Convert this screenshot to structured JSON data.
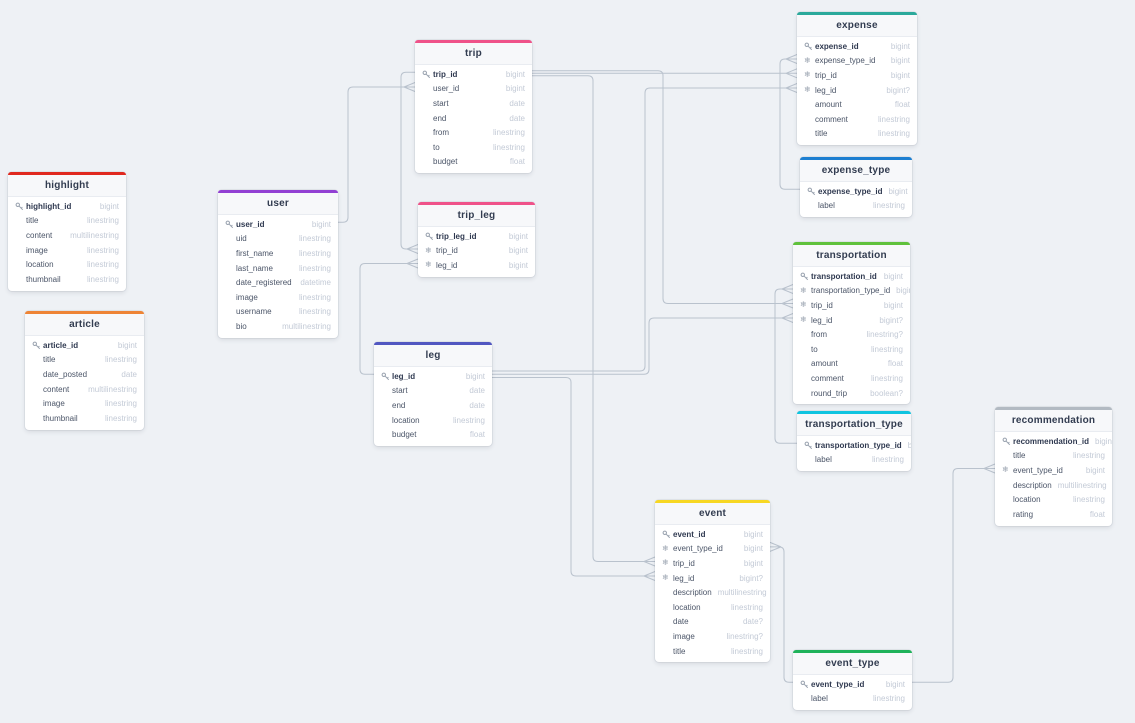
{
  "canvas": {
    "background_color": "#eef1f5",
    "connector_color": "#b9c2cd"
  },
  "tables": [
    {
      "name": "highlight",
      "color": "#e0281e",
      "fields": [
        {
          "name": "highlight_id",
          "type": "bigint",
          "key": "pk"
        },
        {
          "name": "title",
          "type": "linestring",
          "key": null
        },
        {
          "name": "content",
          "type": "multilinestring",
          "key": null
        },
        {
          "name": "image",
          "type": "linestring",
          "key": null
        },
        {
          "name": "location",
          "type": "linestring",
          "key": null
        },
        {
          "name": "thumbnail",
          "type": "linestring",
          "key": null
        }
      ]
    },
    {
      "name": "article",
      "color": "#ee8435",
      "fields": [
        {
          "name": "article_id",
          "type": "bigint",
          "key": "pk"
        },
        {
          "name": "title",
          "type": "linestring",
          "key": null
        },
        {
          "name": "date_posted",
          "type": "date",
          "key": null
        },
        {
          "name": "content",
          "type": "multilinestring",
          "key": null
        },
        {
          "name": "image",
          "type": "linestring",
          "key": null
        },
        {
          "name": "thumbnail",
          "type": "linestring",
          "key": null
        }
      ]
    },
    {
      "name": "user",
      "color": "#9240d3",
      "fields": [
        {
          "name": "user_id",
          "type": "bigint",
          "key": "pk"
        },
        {
          "name": "uid",
          "type": "linestring",
          "key": null
        },
        {
          "name": "first_name",
          "type": "linestring",
          "key": null
        },
        {
          "name": "last_name",
          "type": "linestring",
          "key": null
        },
        {
          "name": "date_registered",
          "type": "datetime",
          "key": null
        },
        {
          "name": "image",
          "type": "linestring",
          "key": null
        },
        {
          "name": "username",
          "type": "linestring",
          "key": null
        },
        {
          "name": "bio",
          "type": "multilinestring",
          "key": null
        }
      ]
    },
    {
      "name": "trip",
      "color": "#ef5289",
      "fields": [
        {
          "name": "trip_id",
          "type": "bigint",
          "key": "pk"
        },
        {
          "name": "user_id",
          "type": "bigint",
          "key": null
        },
        {
          "name": "start",
          "type": "date",
          "key": null
        },
        {
          "name": "end",
          "type": "date",
          "key": null
        },
        {
          "name": "from",
          "type": "linestring",
          "key": null
        },
        {
          "name": "to",
          "type": "linestring",
          "key": null
        },
        {
          "name": "budget",
          "type": "float",
          "key": null
        }
      ]
    },
    {
      "name": "trip_leg",
      "color": "#ef5289",
      "fields": [
        {
          "name": "trip_leg_id",
          "type": "bigint",
          "key": "pk"
        },
        {
          "name": "trip_id",
          "type": "bigint",
          "key": "fk"
        },
        {
          "name": "leg_id",
          "type": "bigint",
          "key": "fk"
        }
      ]
    },
    {
      "name": "leg",
      "color": "#5157c1",
      "fields": [
        {
          "name": "leg_id",
          "type": "bigint",
          "key": "pk"
        },
        {
          "name": "start",
          "type": "date",
          "key": null
        },
        {
          "name": "end",
          "type": "date",
          "key": null
        },
        {
          "name": "location",
          "type": "linestring",
          "key": null
        },
        {
          "name": "budget",
          "type": "float",
          "key": null
        }
      ]
    },
    {
      "name": "expense",
      "color": "#2ba99b",
      "fields": [
        {
          "name": "expense_id",
          "type": "bigint",
          "key": "pk"
        },
        {
          "name": "expense_type_id",
          "type": "bigint",
          "key": "fk"
        },
        {
          "name": "trip_id",
          "type": "bigint",
          "key": "fk"
        },
        {
          "name": "leg_id",
          "type": "bigint?",
          "key": "fk"
        },
        {
          "name": "amount",
          "type": "float",
          "key": null
        },
        {
          "name": "comment",
          "type": "linestring",
          "key": null
        },
        {
          "name": "title",
          "type": "linestring",
          "key": null
        }
      ]
    },
    {
      "name": "expense_type",
      "color": "#1d7fd1",
      "fields": [
        {
          "name": "expense_type_id",
          "type": "bigint",
          "key": "pk"
        },
        {
          "name": "label",
          "type": "linestring",
          "key": null
        }
      ]
    },
    {
      "name": "transportation",
      "color": "#5fc13b",
      "fields": [
        {
          "name": "transportation_id",
          "type": "bigint",
          "key": "pk"
        },
        {
          "name": "transportation_type_id",
          "type": "bigint",
          "key": "fk"
        },
        {
          "name": "trip_id",
          "type": "bigint",
          "key": "fk"
        },
        {
          "name": "leg_id",
          "type": "bigint?",
          "key": "fk"
        },
        {
          "name": "from",
          "type": "linestring?",
          "key": null
        },
        {
          "name": "to",
          "type": "linestring",
          "key": null
        },
        {
          "name": "amount",
          "type": "float",
          "key": null
        },
        {
          "name": "comment",
          "type": "linestring",
          "key": null
        },
        {
          "name": "round_trip",
          "type": "boolean?",
          "key": null
        }
      ]
    },
    {
      "name": "transportation_type",
      "color": "#0fc4e0",
      "fields": [
        {
          "name": "transportation_type_id",
          "type": "bigint",
          "key": "pk"
        },
        {
          "name": "label",
          "type": "linestring",
          "key": null
        }
      ]
    },
    {
      "name": "recommendation",
      "color": "#b2bac2",
      "fields": [
        {
          "name": "recommendation_id",
          "type": "bigint",
          "key": "pk"
        },
        {
          "name": "title",
          "type": "linestring",
          "key": null
        },
        {
          "name": "event_type_id",
          "type": "bigint",
          "key": "fk"
        },
        {
          "name": "description",
          "type": "multilinestring",
          "key": null
        },
        {
          "name": "location",
          "type": "linestring",
          "key": null
        },
        {
          "name": "rating",
          "type": "float",
          "key": null
        }
      ]
    },
    {
      "name": "event",
      "color": "#f7d723",
      "fields": [
        {
          "name": "event_id",
          "type": "bigint",
          "key": "pk"
        },
        {
          "name": "event_type_id",
          "type": "bigint",
          "key": "fk"
        },
        {
          "name": "trip_id",
          "type": "bigint",
          "key": "fk"
        },
        {
          "name": "leg_id",
          "type": "bigint?",
          "key": "fk"
        },
        {
          "name": "description",
          "type": "multilinestring",
          "key": null
        },
        {
          "name": "location",
          "type": "linestring",
          "key": null
        },
        {
          "name": "date",
          "type": "date?",
          "key": null
        },
        {
          "name": "image",
          "type": "linestring?",
          "key": null
        },
        {
          "name": "title",
          "type": "linestring",
          "key": null
        }
      ]
    },
    {
      "name": "event_type",
      "color": "#1fb25a",
      "fields": [
        {
          "name": "event_type_id",
          "type": "bigint",
          "key": "pk"
        },
        {
          "name": "label",
          "type": "linestring",
          "key": null
        }
      ]
    }
  ],
  "relationships": [
    {
      "from": "trip.user_id",
      "to": "user.user_id"
    },
    {
      "from": "trip_leg.trip_id",
      "to": "trip.trip_id"
    },
    {
      "from": "trip_leg.leg_id",
      "to": "leg.leg_id"
    },
    {
      "from": "expense.expense_type_id",
      "to": "expense_type.expense_type_id"
    },
    {
      "from": "expense.trip_id",
      "to": "trip.trip_id"
    },
    {
      "from": "expense.leg_id",
      "to": "leg.leg_id"
    },
    {
      "from": "transportation.transportation_type_id",
      "to": "transportation_type.transportation_type_id"
    },
    {
      "from": "transportation.trip_id",
      "to": "trip.trip_id"
    },
    {
      "from": "transportation.leg_id",
      "to": "leg.leg_id"
    },
    {
      "from": "event.event_type_id",
      "to": "event_type.event_type_id"
    },
    {
      "from": "event.trip_id",
      "to": "trip.trip_id"
    },
    {
      "from": "event.leg_id",
      "to": "leg.leg_id"
    },
    {
      "from": "recommendation.event_type_id",
      "to": "event_type.event_type_id"
    }
  ],
  "icons": {
    "primary_key": "key-icon",
    "foreign_key": "snowflake-icon",
    "foreign_key_glyph": "❄"
  }
}
